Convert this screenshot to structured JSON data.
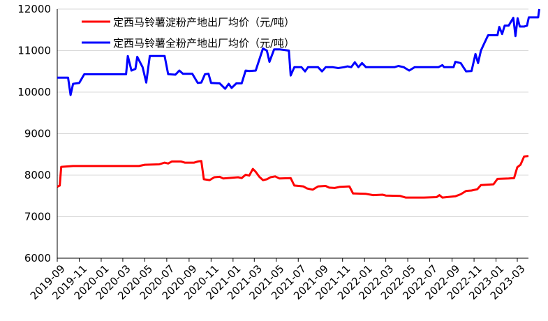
{
  "chart_data": {
    "type": "line",
    "title": "",
    "xlabel": "",
    "ylabel": "",
    "ylim": [
      6000,
      12000
    ],
    "yticks": [
      6000,
      7000,
      8000,
      9000,
      10000,
      11000,
      12000
    ],
    "xlim": [
      "2019-09",
      "2023-04"
    ],
    "xticks": [
      "2019-09",
      "2019-11",
      "2020-01",
      "2020-03",
      "2020-05",
      "2020-07",
      "2020-09",
      "2020-11",
      "2021-01",
      "2021-03",
      "2021-05",
      "2021-07",
      "2021-09",
      "2021-11",
      "2022-01",
      "2022-03",
      "2022-05",
      "2022-07",
      "2022-09",
      "2022-11",
      "2023-01",
      "2023-03"
    ],
    "grid": "horizontal",
    "legend": "top-left",
    "series": [
      {
        "name": "定西马铃薯淀粉产地出厂均价（元/吨）",
        "color": "#ff0000",
        "points": [
          [
            "2019-09-01",
            7720
          ],
          [
            "2019-09-08",
            7750
          ],
          [
            "2019-09-12",
            8200
          ],
          [
            "2019-10-15",
            8220
          ],
          [
            "2020-02-15",
            8220
          ],
          [
            "2020-04-15",
            8220
          ],
          [
            "2020-05-01",
            8250
          ],
          [
            "2020-06-10",
            8260
          ],
          [
            "2020-06-25",
            8300
          ],
          [
            "2020-07-05",
            8280
          ],
          [
            "2020-07-15",
            8330
          ],
          [
            "2020-08-10",
            8330
          ],
          [
            "2020-08-20",
            8300
          ],
          [
            "2020-09-15",
            8300
          ],
          [
            "2020-09-25",
            8330
          ],
          [
            "2020-10-05",
            8340
          ],
          [
            "2020-10-12",
            7900
          ],
          [
            "2020-10-28",
            7880
          ],
          [
            "2020-11-10",
            7950
          ],
          [
            "2020-11-25",
            7960
          ],
          [
            "2020-12-05",
            7920
          ],
          [
            "2021-01-15",
            7950
          ],
          [
            "2021-01-25",
            7930
          ],
          [
            "2021-02-05",
            8010
          ],
          [
            "2021-02-15",
            7990
          ],
          [
            "2021-02-25",
            8150
          ],
          [
            "2021-03-05",
            8080
          ],
          [
            "2021-03-15",
            7960
          ],
          [
            "2021-03-25",
            7880
          ],
          [
            "2021-04-05",
            7900
          ],
          [
            "2021-04-15",
            7950
          ],
          [
            "2021-04-28",
            7970
          ],
          [
            "2021-05-10",
            7920
          ],
          [
            "2021-06-10",
            7930
          ],
          [
            "2021-06-20",
            7750
          ],
          [
            "2021-07-15",
            7730
          ],
          [
            "2021-07-25",
            7680
          ],
          [
            "2021-08-10",
            7650
          ],
          [
            "2021-08-25",
            7730
          ],
          [
            "2021-09-15",
            7740
          ],
          [
            "2021-09-25",
            7700
          ],
          [
            "2021-10-10",
            7690
          ],
          [
            "2021-10-25",
            7720
          ],
          [
            "2021-11-20",
            7730
          ],
          [
            "2021-11-30",
            7560
          ],
          [
            "2022-01-05",
            7550
          ],
          [
            "2022-01-25",
            7520
          ],
          [
            "2022-02-20",
            7530
          ],
          [
            "2022-03-01",
            7510
          ],
          [
            "2022-04-10",
            7500
          ],
          [
            "2022-04-25",
            7460
          ],
          [
            "2022-06-15",
            7460
          ],
          [
            "2022-07-20",
            7470
          ],
          [
            "2022-07-28",
            7520
          ],
          [
            "2022-08-05",
            7460
          ],
          [
            "2022-09-10",
            7490
          ],
          [
            "2022-09-25",
            7540
          ],
          [
            "2022-10-10",
            7620
          ],
          [
            "2022-10-25",
            7630
          ],
          [
            "2022-11-10",
            7660
          ],
          [
            "2022-11-20",
            7760
          ],
          [
            "2022-12-25",
            7780
          ],
          [
            "2023-01-05",
            7910
          ],
          [
            "2023-02-05",
            7920
          ],
          [
            "2023-02-20",
            7930
          ],
          [
            "2023-03-01",
            8190
          ],
          [
            "2023-03-10",
            8250
          ],
          [
            "2023-03-20",
            8450
          ],
          [
            "2023-04-01",
            8460
          ]
        ]
      },
      {
        "name": "定西马铃薯全粉产地出厂均价（元/吨）",
        "color": "#0000ff",
        "points": [
          [
            "2019-09-01",
            10350
          ],
          [
            "2019-10-01",
            10350
          ],
          [
            "2019-10-08",
            9930
          ],
          [
            "2019-10-15",
            10200
          ],
          [
            "2019-11-01",
            10220
          ],
          [
            "2019-11-15",
            10430
          ],
          [
            "2020-03-10",
            10430
          ],
          [
            "2020-03-15",
            10870
          ],
          [
            "2020-03-25",
            10520
          ],
          [
            "2020-04-05",
            10560
          ],
          [
            "2020-04-10",
            10850
          ],
          [
            "2020-04-25",
            10600
          ],
          [
            "2020-05-05",
            10230
          ],
          [
            "2020-05-15",
            10870
          ],
          [
            "2020-06-10",
            10870
          ],
          [
            "2020-06-25",
            10870
          ],
          [
            "2020-07-05",
            10430
          ],
          [
            "2020-07-25",
            10420
          ],
          [
            "2020-08-05",
            10520
          ],
          [
            "2020-08-15",
            10440
          ],
          [
            "2020-09-10",
            10440
          ],
          [
            "2020-09-25",
            10220
          ],
          [
            "2020-10-05",
            10230
          ],
          [
            "2020-10-15",
            10430
          ],
          [
            "2020-10-25",
            10440
          ],
          [
            "2020-11-01",
            10220
          ],
          [
            "2020-11-25",
            10210
          ],
          [
            "2020-12-10",
            10080
          ],
          [
            "2020-12-20",
            10200
          ],
          [
            "2020-12-28",
            10100
          ],
          [
            "2021-01-10",
            10210
          ],
          [
            "2021-01-25",
            10210
          ],
          [
            "2021-02-05",
            10520
          ],
          [
            "2021-02-15",
            10510
          ],
          [
            "2021-03-05",
            10520
          ],
          [
            "2021-03-25",
            11050
          ],
          [
            "2021-04-05",
            11000
          ],
          [
            "2021-04-12",
            10730
          ],
          [
            "2021-04-25",
            11030
          ],
          [
            "2021-05-10",
            11030
          ],
          [
            "2021-06-05",
            11000
          ],
          [
            "2021-06-10",
            10400
          ],
          [
            "2021-06-20",
            10600
          ],
          [
            "2021-07-10",
            10600
          ],
          [
            "2021-07-20",
            10500
          ],
          [
            "2021-07-28",
            10600
          ],
          [
            "2021-08-25",
            10600
          ],
          [
            "2021-09-05",
            10500
          ],
          [
            "2021-09-15",
            10600
          ],
          [
            "2021-10-05",
            10600
          ],
          [
            "2021-10-20",
            10580
          ],
          [
            "2021-11-05",
            10600
          ],
          [
            "2021-11-15",
            10620
          ],
          [
            "2021-11-25",
            10600
          ],
          [
            "2021-12-05",
            10720
          ],
          [
            "2021-12-15",
            10600
          ],
          [
            "2021-12-25",
            10700
          ],
          [
            "2022-01-05",
            10600
          ],
          [
            "2022-03-25",
            10600
          ],
          [
            "2022-04-05",
            10630
          ],
          [
            "2022-04-20",
            10600
          ],
          [
            "2022-05-05",
            10520
          ],
          [
            "2022-05-20",
            10600
          ],
          [
            "2022-06-15",
            10600
          ],
          [
            "2022-07-25",
            10600
          ],
          [
            "2022-08-05",
            10650
          ],
          [
            "2022-08-10",
            10600
          ],
          [
            "2022-09-05",
            10600
          ],
          [
            "2022-09-10",
            10730
          ],
          [
            "2022-09-25",
            10700
          ],
          [
            "2022-10-10",
            10500
          ],
          [
            "2022-10-25",
            10510
          ],
          [
            "2022-11-05",
            10920
          ],
          [
            "2022-11-12",
            10700
          ],
          [
            "2022-11-20",
            11000
          ],
          [
            "2022-11-28",
            11150
          ],
          [
            "2022-12-10",
            11370
          ],
          [
            "2023-01-05",
            11370
          ],
          [
            "2023-01-10",
            11570
          ],
          [
            "2023-01-18",
            11400
          ],
          [
            "2023-01-25",
            11600
          ],
          [
            "2023-02-05",
            11600
          ],
          [
            "2023-02-18",
            11790
          ],
          [
            "2023-02-24",
            11350
          ],
          [
            "2023-03-02",
            11780
          ],
          [
            "2023-03-08",
            11580
          ],
          [
            "2023-03-20",
            11580
          ],
          [
            "2023-03-28",
            11600
          ],
          [
            "2023-04-02",
            11800
          ],
          [
            "2023-04-20",
            11800
          ],
          [
            "2023-04-28",
            11800
          ],
          [
            "2023-05-01",
            12000
          ]
        ]
      }
    ]
  }
}
